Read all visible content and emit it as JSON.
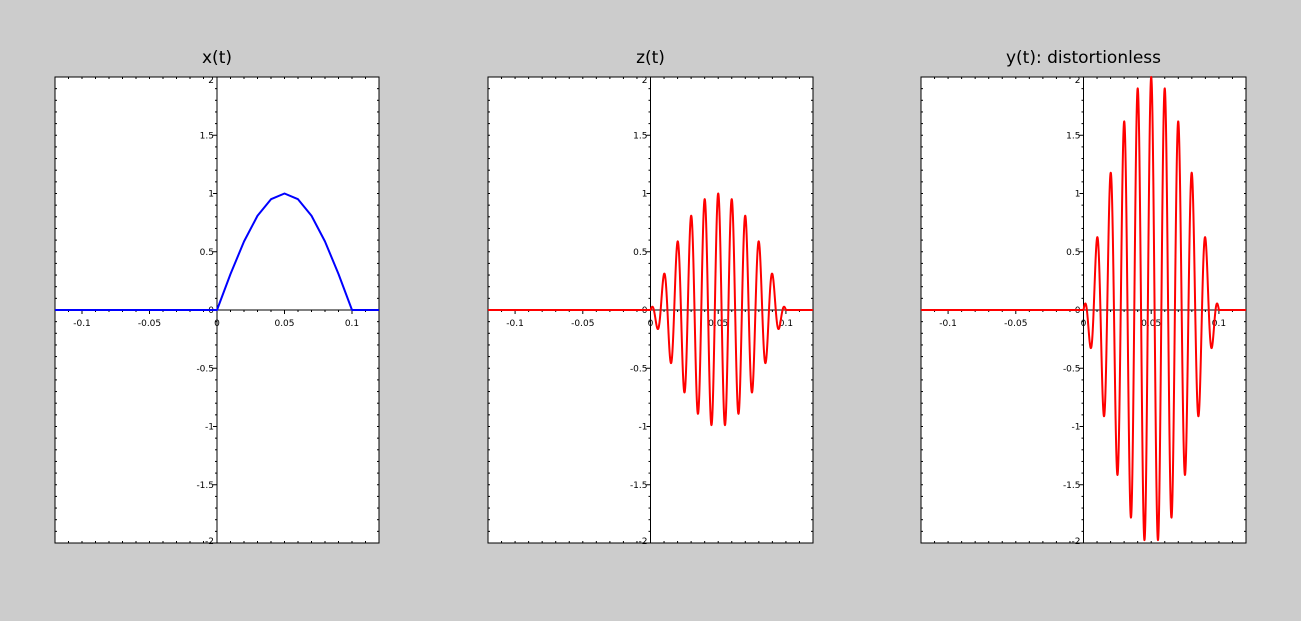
{
  "figure": {
    "background": "#cccccc",
    "layout": "1x3 subplots"
  },
  "chart_data": [
    {
      "type": "line",
      "title": "x(t)",
      "xlabel": "",
      "ylabel": "",
      "xlim": [
        -0.12,
        0.12
      ],
      "ylim": [
        -2,
        2
      ],
      "xticks": [
        -0.1,
        -0.05,
        0,
        0.05,
        0.1
      ],
      "xtick_labels": [
        "-0.1",
        "-0.05",
        "0",
        "0.05",
        "0.1"
      ],
      "yticks": [
        -2,
        -1.5,
        -1,
        -0.5,
        0,
        0.5,
        1,
        1.5,
        2
      ],
      "ytick_labels": [
        "-2",
        "-1.5",
        "-1",
        "-0.5",
        "0",
        "0.5",
        "1",
        "1.5",
        "2"
      ],
      "axes_background": "#ffffff",
      "grid": false,
      "axes_through_origin": true,
      "series": [
        {
          "color": "#0000ff",
          "function": "sin(pi*t/0.1) for 0<=t<=0.1, else 0",
          "x": [
            -0.12,
            0,
            0.01,
            0.02,
            0.03,
            0.04,
            0.05,
            0.06,
            0.07,
            0.08,
            0.09,
            0.1,
            0.12
          ],
          "y": [
            0,
            0,
            0.309,
            0.588,
            0.809,
            0.951,
            1.0,
            0.951,
            0.809,
            0.588,
            0.309,
            0,
            0
          ]
        }
      ]
    },
    {
      "type": "line",
      "title": "z(t)",
      "xlabel": "",
      "ylabel": "",
      "xlim": [
        -0.12,
        0.12
      ],
      "ylim": [
        -2,
        2
      ],
      "xticks": [
        -0.1,
        -0.05,
        0,
        0.05,
        0.1
      ],
      "xtick_labels": [
        "-0.1",
        "-0.05",
        "0",
        "0.05",
        "0.1"
      ],
      "yticks": [
        -2,
        -1.5,
        -1,
        -0.5,
        0,
        0.5,
        1,
        1.5,
        2
      ],
      "ytick_labels": [
        "-2",
        "-1.5",
        "-1",
        "-0.5",
        "0",
        "0.5",
        "1",
        "1.5",
        "2"
      ],
      "axes_background": "#ffffff",
      "grid": false,
      "axes_through_origin": true,
      "series": [
        {
          "color": "#ff0000",
          "function": "sin(pi*t/0.1)*cos(2*pi*100*t) for 0<=t<=0.1, else 0",
          "envelope_peak": 1.0,
          "carrier_frequency_hz": 100
        }
      ]
    },
    {
      "type": "line",
      "title": "y(t): distortionless",
      "xlabel": "",
      "ylabel": "",
      "xlim": [
        -0.12,
        0.12
      ],
      "ylim": [
        -2,
        2
      ],
      "xticks": [
        -0.1,
        -0.05,
        0,
        0.05,
        0.1
      ],
      "xtick_labels": [
        "-0.1",
        "-0.05",
        "0",
        "0.05",
        "0.1"
      ],
      "yticks": [
        -2,
        -1.5,
        -1,
        -0.5,
        0,
        0.5,
        1,
        1.5,
        2
      ],
      "ytick_labels": [
        "-2",
        "-1.5",
        "-1",
        "-0.5",
        "0",
        "0.5",
        "1",
        "1.5",
        "2"
      ],
      "axes_background": "#ffffff",
      "grid": false,
      "axes_through_origin": true,
      "series": [
        {
          "color": "#ff0000",
          "function": "2*sin(pi*t/0.1)*cos(2*pi*100*t) for 0<=t<=0.1, else 0",
          "envelope_peak": 2.0,
          "carrier_frequency_hz": 100
        }
      ]
    }
  ]
}
